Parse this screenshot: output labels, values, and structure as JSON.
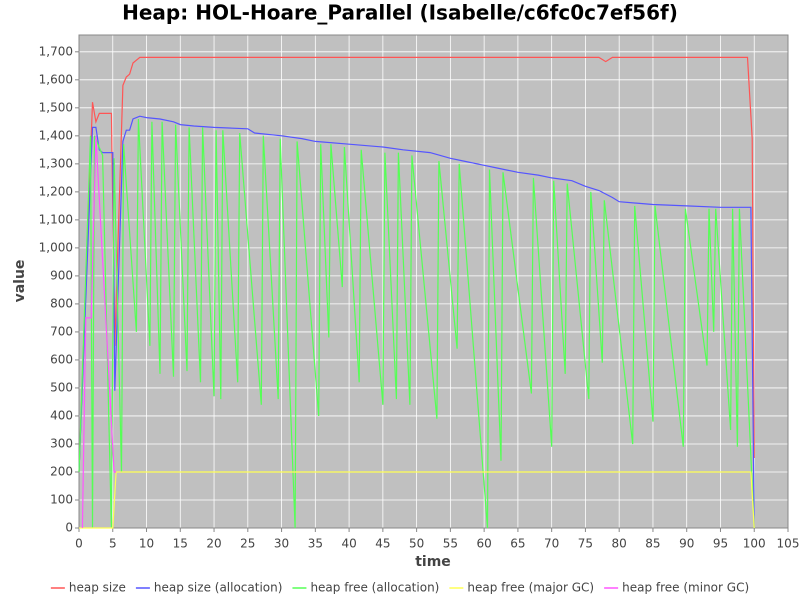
{
  "chart_data": {
    "type": "line",
    "title": "Heap: HOL-Hoare_Parallel (Isabelle/c6fc0c7ef56f)",
    "x_label": "time",
    "y_label": "value",
    "xlim": [
      0,
      105
    ],
    "ylim": [
      0,
      1760
    ],
    "xticks": [
      0,
      5,
      10,
      15,
      20,
      25,
      30,
      35,
      40,
      45,
      50,
      55,
      60,
      65,
      70,
      75,
      80,
      85,
      90,
      95,
      100,
      105
    ],
    "yticks": [
      0,
      100,
      200,
      300,
      400,
      500,
      600,
      700,
      800,
      900,
      {
        "value": 1000,
        "label": "1,000"
      },
      {
        "value": 1100,
        "label": "1,100"
      },
      {
        "value": 1200,
        "label": "1,200"
      },
      {
        "value": 1300,
        "label": "1,300"
      },
      {
        "value": 1400,
        "label": "1,400"
      },
      {
        "value": 1500,
        "label": "1,500"
      },
      {
        "value": 1600,
        "label": "1,600"
      },
      {
        "value": 1700,
        "label": "1,700"
      }
    ],
    "grid": true,
    "legend": "bottom",
    "series": [
      {
        "name": "heap size",
        "color": "#ff5555",
        "x": [
          0,
          2,
          2.5,
          3,
          4.8,
          5.3,
          6.5,
          7,
          7.5,
          8,
          8.5,
          9,
          20,
          40,
          60,
          77,
          78,
          79,
          99,
          99.7,
          100
        ],
        "values": [
          200,
          1520,
          1450,
          1480,
          1480,
          650,
          1580,
          1610,
          1620,
          1660,
          1670,
          1680,
          1680,
          1680,
          1680,
          1680,
          1665,
          1680,
          1680,
          1390,
          250
        ]
      },
      {
        "name": "heap size (allocation)",
        "color": "#5555ff",
        "x": [
          0,
          2,
          2.5,
          3,
          3.5,
          5,
          5.3,
          6.5,
          7,
          7.5,
          8,
          9,
          10,
          12,
          14,
          15,
          17,
          20,
          25,
          26,
          30,
          33,
          35,
          40,
          45,
          48,
          52,
          55,
          57,
          60,
          62,
          65,
          68,
          70,
          73,
          75,
          77,
          79,
          80,
          85,
          90,
          95,
          99.5,
          100
        ],
        "values": [
          200,
          1430,
          1430,
          1350,
          1340,
          1340,
          490,
          1380,
          1420,
          1420,
          1460,
          1470,
          1465,
          1460,
          1450,
          1440,
          1435,
          1430,
          1425,
          1410,
          1400,
          1390,
          1380,
          1370,
          1360,
          1350,
          1340,
          1320,
          1310,
          1295,
          1285,
          1270,
          1260,
          1250,
          1240,
          1220,
          1205,
          1180,
          1165,
          1155,
          1150,
          1145,
          1145,
          0
        ]
      },
      {
        "name": "heap free (allocation)",
        "color": "#55ff55",
        "x": [
          0,
          1.7,
          2,
          2.3,
          3.5,
          4.8,
          5.2,
          6.3,
          6.6,
          8.5,
          8.8,
          10.5,
          10.8,
          12,
          12.3,
          14,
          14.3,
          16,
          16.3,
          18,
          18.3,
          20,
          20.3,
          21,
          21.3,
          23.5,
          23.8,
          27,
          27.3,
          29.5,
          29.8,
          32,
          32.3,
          35.5,
          35.8,
          37,
          37.3,
          39,
          39.3,
          41.5,
          41.8,
          45,
          45.3,
          47,
          47.3,
          49,
          49.3,
          53,
          53.3,
          56,
          56.3,
          60.5,
          60.8,
          62.5,
          62.8,
          67,
          67.3,
          70,
          70.3,
          72,
          72.3,
          75.5,
          75.8,
          77.5,
          77.8,
          82,
          82.3,
          85,
          85.3,
          89.5,
          89.8,
          93,
          93.3,
          94,
          94.3,
          96.5,
          96.8,
          97.5,
          97.8,
          100
        ],
        "values": [
          200,
          1400,
          0,
          1400,
          1330,
          0,
          1320,
          200,
          1370,
          700,
          1460,
          650,
          1450,
          550,
          1450,
          540,
          1440,
          560,
          1430,
          520,
          1430,
          470,
          1420,
          460,
          1420,
          520,
          1410,
          440,
          1400,
          460,
          1390,
          0,
          1380,
          400,
          1370,
          680,
          1370,
          860,
          1360,
          520,
          1350,
          440,
          1340,
          460,
          1340,
          440,
          1330,
          390,
          1310,
          640,
          1300,
          0,
          1280,
          240,
          1270,
          480,
          1250,
          290,
          1240,
          550,
          1230,
          460,
          1200,
          590,
          1170,
          300,
          1150,
          380,
          1150,
          290,
          1140,
          580,
          1140,
          700,
          1140,
          350,
          1140,
          290,
          1140,
          0
        ]
      },
      {
        "name": "heap free (major GC)",
        "color": "#ffff55",
        "x": [
          0,
          5,
          5.5,
          99.5,
          100
        ],
        "values": [
          0,
          0,
          200,
          200,
          0
        ]
      },
      {
        "name": "heap free (minor GC)",
        "color": "#ff55ff",
        "x": [
          0.5,
          1,
          1.8,
          2.5,
          5.2,
          5.5
        ],
        "values": [
          0,
          750,
          750,
          1400,
          200,
          200
        ]
      }
    ]
  }
}
